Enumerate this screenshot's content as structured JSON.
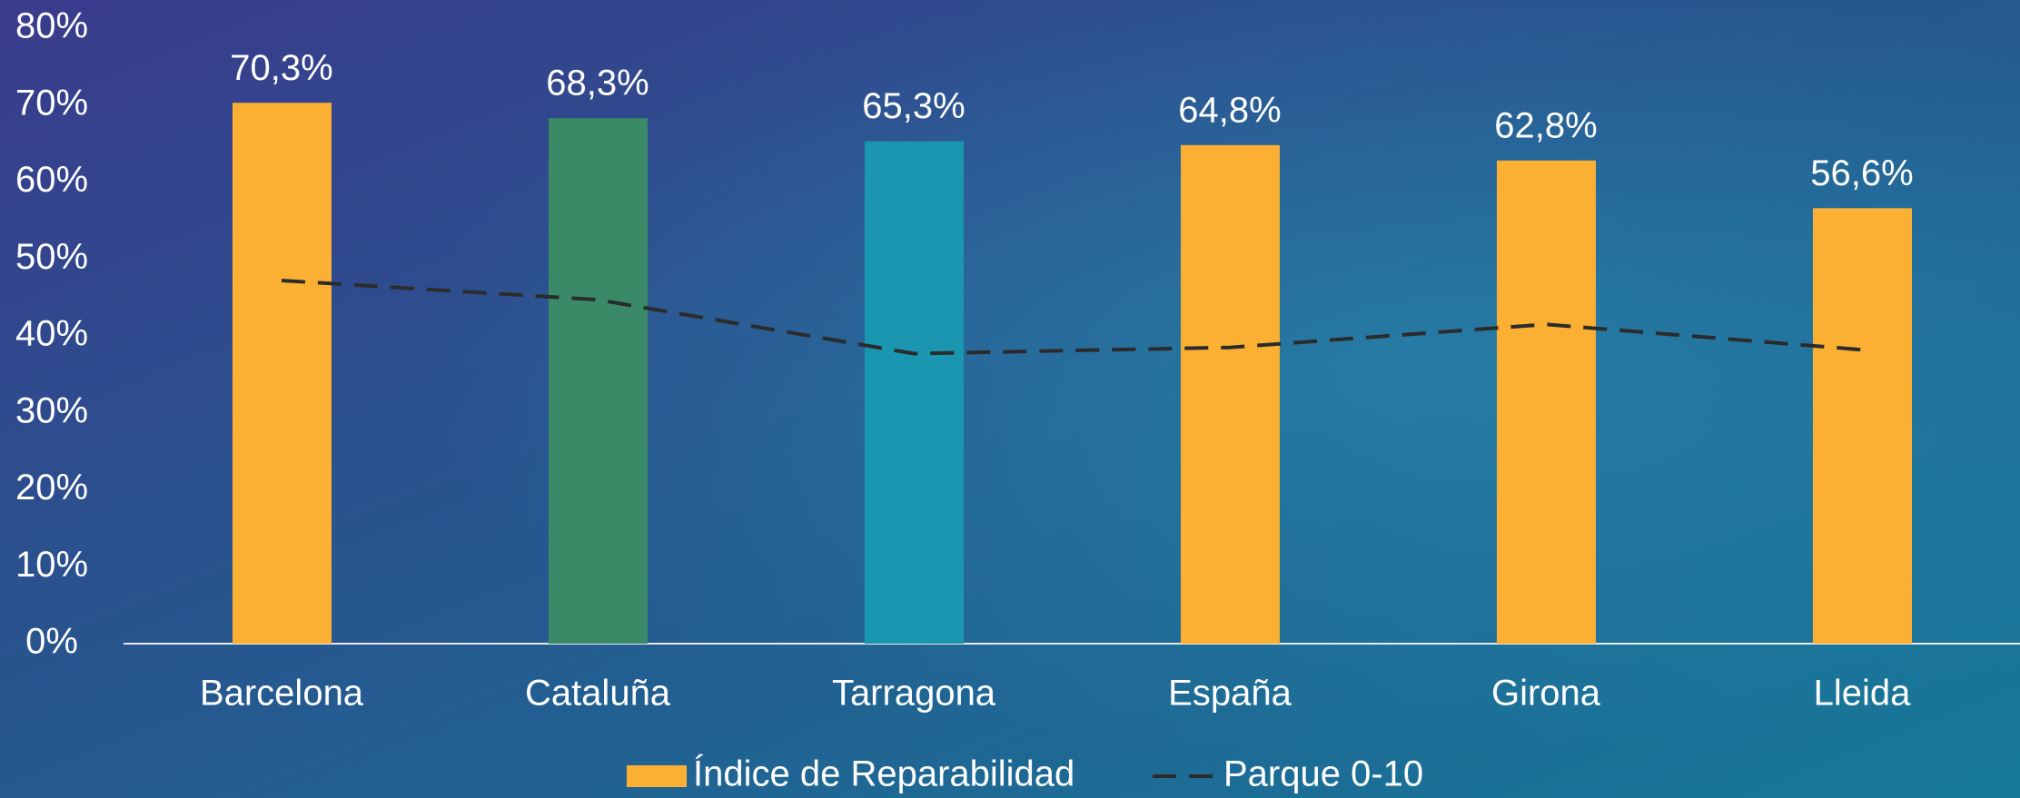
{
  "chart_data": {
    "type": "bar",
    "categories": [
      "Barcelona",
      "Cataluña",
      "Tarragona",
      "España",
      "Girona",
      "Lleida"
    ],
    "series": [
      {
        "name": "Índice de Reparabilidad",
        "type": "bar",
        "color": "#fbb034",
        "colors": [
          "#fbb034",
          "#3a8a68",
          "#1a96b0",
          "#fbb034",
          "#fbb034",
          "#fbb034"
        ],
        "values": [
          70.3,
          68.3,
          65.3,
          64.8,
          62.8,
          56.6
        ],
        "value_labels": [
          "70,3%",
          "68,3%",
          "65,3%",
          "64,8%",
          "62,8%",
          "56,6%"
        ]
      },
      {
        "name": "Parque 0-10",
        "type": "line",
        "color": "#2b2b2b",
        "values": [
          47.2,
          44.7,
          37.7,
          38.5,
          41.5,
          38.2
        ]
      }
    ],
    "ylim": [
      0,
      80
    ],
    "yticks": [
      {
        "value": 0,
        "label": "0%"
      },
      {
        "value": 10,
        "label": "10%"
      },
      {
        "value": 20,
        "label": "20%"
      },
      {
        "value": 30,
        "label": "30%"
      },
      {
        "value": 40,
        "label": "40%"
      },
      {
        "value": 50,
        "label": "50%"
      },
      {
        "value": 60,
        "label": "60%"
      },
      {
        "value": 70,
        "label": "70%"
      },
      {
        "value": 80,
        "label": "80%"
      }
    ],
    "grid": false
  }
}
